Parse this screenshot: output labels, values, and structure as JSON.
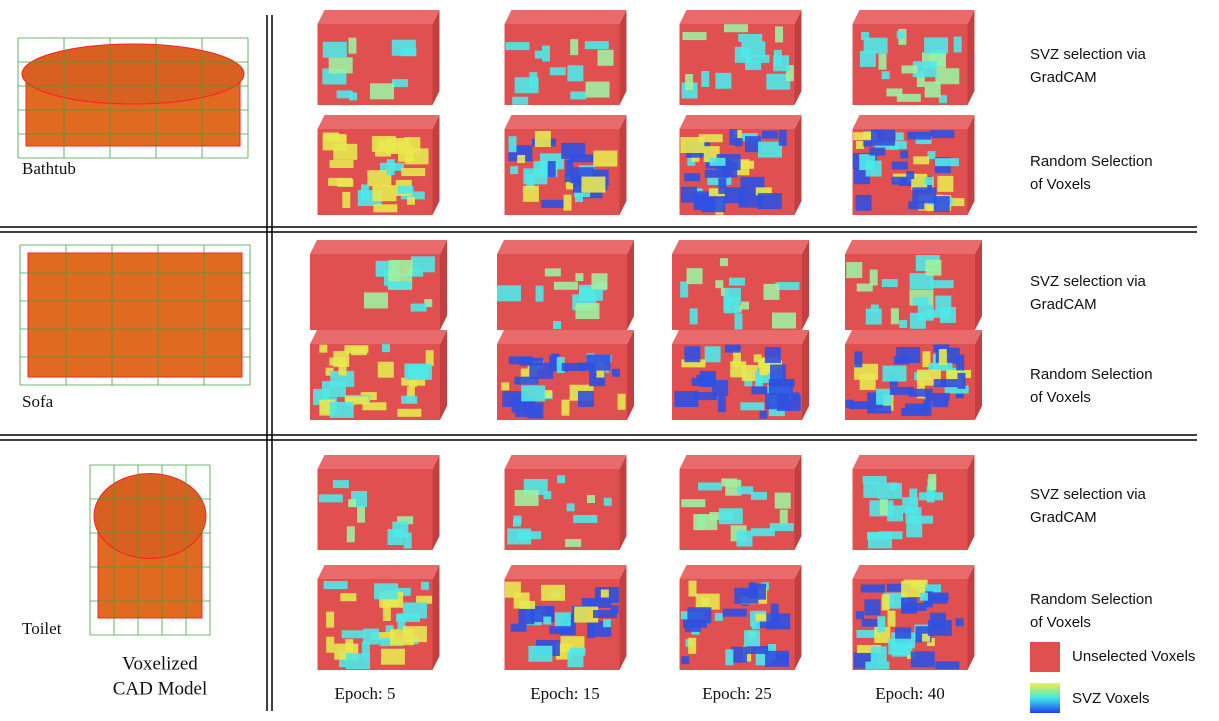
{
  "rows": [
    {
      "label": "Bathtub",
      "methods": [
        [
          "SVZ selection via",
          "GradCAM"
        ],
        [
          "Random Selection",
          "of Voxels"
        ]
      ]
    },
    {
      "label": "Sofa",
      "methods": [
        [
          "SVZ selection via",
          "GradCAM"
        ],
        [
          "Random Selection",
          "of Voxels"
        ]
      ]
    },
    {
      "label": "Toilet",
      "methods": [
        [
          "SVZ selection via",
          "GradCAM"
        ],
        [
          "Random Selection",
          "of Voxels"
        ]
      ]
    }
  ],
  "epochs": [
    "Epoch: 5",
    "Epoch: 15",
    "Epoch: 25",
    "Epoch: 40"
  ],
  "caption": [
    "Voxelized",
    "CAD Model"
  ],
  "legend": [
    {
      "label": "Unselected Voxels"
    },
    {
      "label": "SVZ Voxels"
    }
  ]
}
